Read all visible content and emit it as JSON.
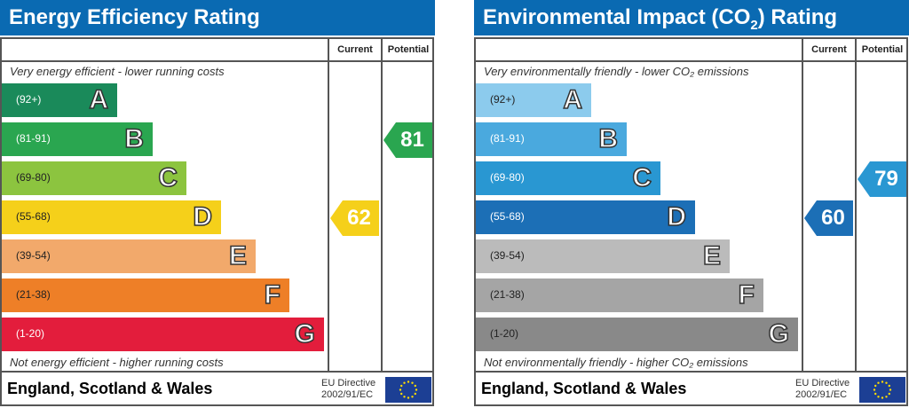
{
  "chart_data": [
    {
      "type": "table",
      "title": "Energy Efficiency Rating",
      "columns": [
        "Current",
        "Potential"
      ],
      "top_note": "Very energy efficient - lower running costs",
      "bottom_note": "Not energy efficient - higher running costs",
      "bands": [
        {
          "letter": "A",
          "range": "(92+)",
          "color": "#1a8a5a"
        },
        {
          "letter": "B",
          "range": "(81-91)",
          "color": "#2aa650"
        },
        {
          "letter": "C",
          "range": "(69-80)",
          "color": "#8cc43f"
        },
        {
          "letter": "D",
          "range": "(55-68)",
          "color": "#f5d01a"
        },
        {
          "letter": "E",
          "range": "(39-54)",
          "color": "#f2a96b"
        },
        {
          "letter": "F",
          "range": "(21-38)",
          "color": "#ee7f27"
        },
        {
          "letter": "G",
          "range": "(1-20)",
          "color": "#e31d3c"
        }
      ],
      "current": {
        "value": "62",
        "band": "D",
        "color": "#f5d01a"
      },
      "potential": {
        "value": "81",
        "band": "B",
        "color": "#2aa650"
      },
      "footer": "England, Scotland & Wales",
      "directive": [
        "EU Directive",
        "2002/91/EC"
      ]
    },
    {
      "type": "table",
      "title": "Environmental Impact (CO",
      "title_sub": "2",
      "title_end": ") Rating",
      "columns": [
        "Current",
        "Potential"
      ],
      "top_note": "Very environmentally friendly - lower CO₂ emissions",
      "bottom_note": "Not environmentally friendly - higher CO₂ emissions",
      "bands": [
        {
          "letter": "A",
          "range": "(92+)",
          "color": "#8ccbed"
        },
        {
          "letter": "B",
          "range": "(81-91)",
          "color": "#4aa9de"
        },
        {
          "letter": "C",
          "range": "(69-80)",
          "color": "#2997d2"
        },
        {
          "letter": "D",
          "range": "(55-68)",
          "color": "#1c6fb6"
        },
        {
          "letter": "E",
          "range": "(39-54)",
          "color": "#bbbbbb"
        },
        {
          "letter": "F",
          "range": "(21-38)",
          "color": "#a5a5a5"
        },
        {
          "letter": "G",
          "range": "(1-20)",
          "color": "#898989"
        }
      ],
      "current": {
        "value": "60",
        "band": "D",
        "color": "#1c6fb6"
      },
      "potential": {
        "value": "79",
        "band": "C",
        "color": "#2997d2"
      },
      "footer": "England, Scotland & Wales",
      "directive": [
        "EU Directive",
        "2002/91/EC"
      ]
    }
  ]
}
